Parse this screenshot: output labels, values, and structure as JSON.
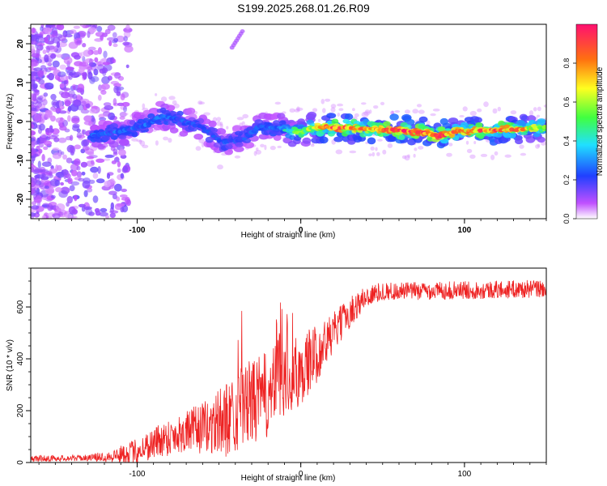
{
  "title": "S199.2025.268.01.26.R09",
  "chart_data": [
    {
      "type": "heatmap",
      "xlabel": "Height of straight line (km)",
      "ylabel": "Frequency (Hz)",
      "xlim": [
        -165,
        150
      ],
      "ylim": [
        -25,
        25
      ],
      "xticks": [
        -100,
        0,
        100
      ],
      "xtick_labels": [
        "-100",
        "0",
        "100"
      ],
      "yticks": [
        -20,
        -10,
        0,
        10,
        20
      ],
      "ytick_labels": [
        "-20",
        "-10",
        "0",
        "10",
        "20"
      ],
      "colorbar": {
        "label": "Normalized spectral amplitude",
        "range": [
          0,
          1
        ],
        "ticks": [
          0.0,
          0.2,
          0.4,
          0.6,
          0.8
        ],
        "tick_labels": [
          "0.0",
          "0.2",
          "0.4",
          "0.6",
          "0.8"
        ],
        "colors": [
          "#ffffff",
          "#c050ff",
          "#2040ff",
          "#20e0ff",
          "#40ff40",
          "#ffff20",
          "#ff7010",
          "#ff1070"
        ]
      },
      "ridge": [
        {
          "x": -125,
          "f": -3.5,
          "a": 0.35
        },
        {
          "x": -110,
          "f": -2.5,
          "a": 0.35
        },
        {
          "x": -95,
          "f": -1.0,
          "a": 0.35
        },
        {
          "x": -85,
          "f": 1.5,
          "a": 0.35
        },
        {
          "x": -75,
          "f": 0.5,
          "a": 0.35
        },
        {
          "x": -60,
          "f": -1.5,
          "a": 0.3
        },
        {
          "x": -48,
          "f": -5.5,
          "a": 0.3
        },
        {
          "x": -35,
          "f": -4.5,
          "a": 0.3
        },
        {
          "x": -25,
          "f": -1.0,
          "a": 0.35
        },
        {
          "x": -10,
          "f": -2.0,
          "a": 0.4
        },
        {
          "x": 0,
          "f": -3.0,
          "a": 0.5
        },
        {
          "x": 8,
          "f": -1.5,
          "a": 0.6
        },
        {
          "x": 20,
          "f": -1.5,
          "a": 0.9
        },
        {
          "x": 40,
          "f": -1.8,
          "a": 0.7
        },
        {
          "x": 60,
          "f": -2.3,
          "a": 0.9
        },
        {
          "x": 75,
          "f": -2.8,
          "a": 0.85
        },
        {
          "x": 85,
          "f": -3.8,
          "a": 0.9
        },
        {
          "x": 95,
          "f": -2.5,
          "a": 0.75
        },
        {
          "x": 115,
          "f": -2.3,
          "a": 0.85
        },
        {
          "x": 135,
          "f": -2.0,
          "a": 0.7
        },
        {
          "x": 148,
          "f": -1.5,
          "a": 0.6
        }
      ]
    },
    {
      "type": "line",
      "xlabel": "Height of straight line (km)",
      "ylabel": "SNR (10 * v/v)",
      "xlim": [
        -165,
        150
      ],
      "ylim": [
        0,
        750
      ],
      "xticks": [
        -100,
        0,
        100
      ],
      "xtick_labels": [
        "-100",
        "0",
        "100"
      ],
      "yticks": [
        0,
        200,
        400,
        600
      ],
      "ytick_labels": [
        "0",
        "200",
        "400",
        "600"
      ],
      "color": "#ee2222",
      "envelope": {
        "x": [
          -165,
          -130,
          -115,
          -100,
          -85,
          -70,
          -55,
          -45,
          -35,
          -20,
          -10,
          0,
          10,
          20,
          30,
          40,
          50,
          100,
          150
        ],
        "base": [
          15,
          18,
          25,
          45,
          90,
          120,
          140,
          170,
          220,
          260,
          320,
          360,
          420,
          500,
          580,
          640,
          660,
          665,
          670
        ],
        "amp": [
          12,
          12,
          25,
          50,
          70,
          80,
          110,
          150,
          160,
          170,
          160,
          140,
          110,
          80,
          60,
          45,
          35,
          35,
          35
        ]
      }
    }
  ]
}
